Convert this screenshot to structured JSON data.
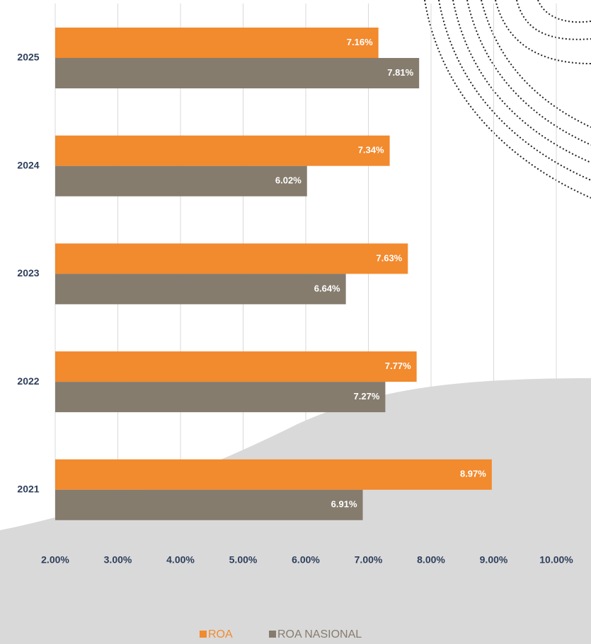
{
  "chart_data": {
    "type": "hbar",
    "categories": [
      "2025",
      "2024",
      "2023",
      "2022",
      "2021"
    ],
    "series": [
      {
        "name": "ROA",
        "color": "#f28a2e",
        "values": [
          7.16,
          7.34,
          7.63,
          7.77,
          8.97
        ],
        "value_labels": [
          "7.16%",
          "7.34%",
          "7.63%",
          "7.77%",
          "8.97%"
        ]
      },
      {
        "name": "ROA NASIONAL",
        "color": "#857c6e",
        "values": [
          7.81,
          6.02,
          6.64,
          7.27,
          6.91
        ],
        "value_labels": [
          "7.81%",
          "6.02%",
          "6.64%",
          "7.27%",
          "6.91%"
        ]
      }
    ],
    "xlim": [
      2,
      10
    ],
    "xticks": [
      {
        "value": 2,
        "label": "2.00%"
      },
      {
        "value": 3,
        "label": "3.00%"
      },
      {
        "value": 4,
        "label": "4.00%"
      },
      {
        "value": 5,
        "label": "5.00%"
      },
      {
        "value": 6,
        "label": "6.00%"
      },
      {
        "value": 7,
        "label": "7.00%"
      },
      {
        "value": 8,
        "label": "8.00%"
      },
      {
        "value": 9,
        "label": "9.00%"
      },
      {
        "value": 10,
        "label": "10.00%"
      }
    ],
    "grid": true
  }
}
